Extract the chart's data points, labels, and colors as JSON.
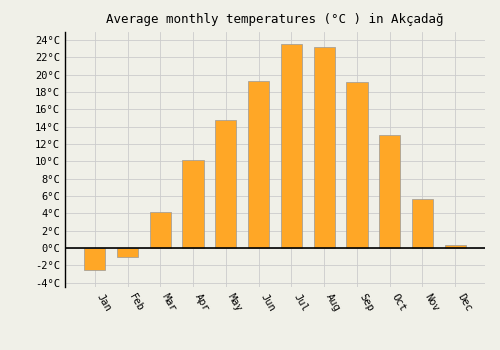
{
  "months": [
    "Jan",
    "Feb",
    "Mar",
    "Apr",
    "May",
    "Jun",
    "Jul",
    "Aug",
    "Sep",
    "Oct",
    "Nov",
    "Dec"
  ],
  "values": [
    -2.5,
    -1.0,
    4.2,
    10.2,
    14.8,
    19.3,
    23.5,
    23.2,
    19.2,
    13.0,
    5.7,
    0.3
  ],
  "bar_color": "#FFA726",
  "bar_edge_color": "#999999",
  "background_color": "#f0f0e8",
  "grid_color": "#cccccc",
  "title": "Average monthly temperatures (°C ) in Akçadağ",
  "title_fontsize": 9,
  "tick_fontsize": 7.5,
  "ylim_min": -4.5,
  "ylim_max": 25.0,
  "yticks": [
    -4,
    -2,
    0,
    2,
    4,
    6,
    8,
    10,
    12,
    14,
    16,
    18,
    20,
    22,
    24
  ],
  "ytick_labels": [
    "-4°C",
    "-2°C",
    "0°C",
    "2°C",
    "4°C",
    "6°C",
    "8°C",
    "10°C",
    "12°C",
    "14°C",
    "16°C",
    "18°C",
    "20°C",
    "22°C",
    "24°C"
  ]
}
